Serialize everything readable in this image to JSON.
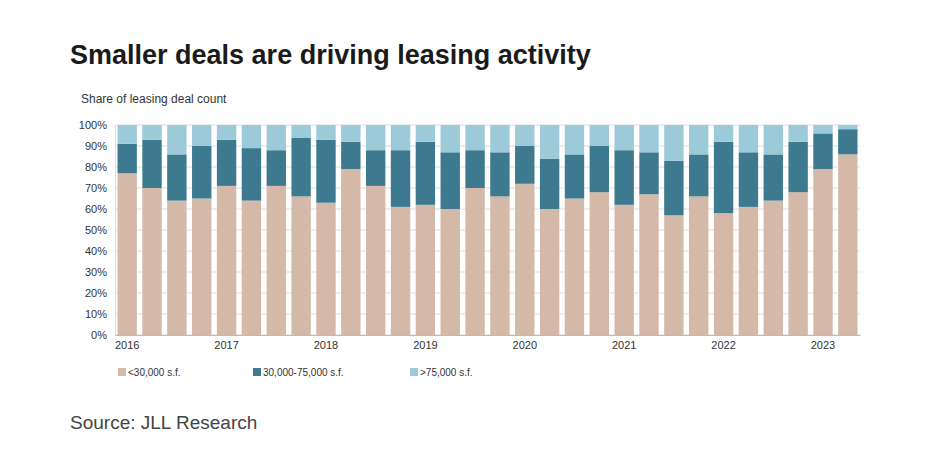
{
  "chart_data": {
    "type": "bar",
    "title": "Smaller deals are driving leasing activity",
    "subtitle": "Share of leasing deal count",
    "source": "Source: JLL Research",
    "categories": [
      "2016",
      null,
      null,
      null,
      "2017",
      null,
      null,
      null,
      "2018",
      null,
      null,
      null,
      "2019",
      null,
      null,
      null,
      "2020",
      null,
      null,
      null,
      "2021",
      null,
      null,
      null,
      "2022",
      null,
      null,
      null,
      "2023",
      null
    ],
    "series": [
      {
        "name": "<30,000 s.f.",
        "color": "#d4b9a8",
        "values": [
          77,
          70,
          64,
          65,
          71,
          64,
          71,
          66,
          63,
          79,
          71,
          61,
          62,
          60,
          70,
          66,
          72,
          60,
          65,
          68,
          62,
          67,
          57,
          66,
          58,
          61,
          64,
          68,
          79,
          86
        ]
      },
      {
        "name": "30,000-75,000 s.f.",
        "color": "#3d7a8f",
        "values": [
          14,
          23,
          22,
          25,
          22,
          25,
          17,
          28,
          30,
          13,
          17,
          27,
          30,
          27,
          18,
          21,
          18,
          24,
          21,
          22,
          26,
          20,
          26,
          20,
          34,
          26,
          22,
          24,
          17,
          12
        ]
      },
      {
        "name": ">75,000 s.f.",
        "color": "#9ccad8",
        "values": [
          9,
          7,
          14,
          10,
          7,
          11,
          12,
          6,
          7,
          8,
          12,
          12,
          8,
          13,
          12,
          13,
          10,
          16,
          14,
          10,
          12,
          13,
          17,
          14,
          8,
          13,
          14,
          8,
          4,
          2
        ]
      }
    ],
    "ylim": [
      0,
      100
    ],
    "yticks": [
      {
        "value": 0,
        "label": "0%"
      },
      {
        "value": 10,
        "label": "10%"
      },
      {
        "value": 20,
        "label": "20%"
      },
      {
        "value": 30,
        "label": "30%"
      },
      {
        "value": 40,
        "label": "40%"
      },
      {
        "value": 50,
        "label": "50%"
      },
      {
        "value": 60,
        "label": "60%"
      },
      {
        "value": 70,
        "label": "70%"
      },
      {
        "value": 80,
        "label": "80%"
      },
      {
        "value": 90,
        "label": "90%"
      },
      {
        "value": 100,
        "label": "100%"
      }
    ],
    "stacked": true,
    "grid": true,
    "legend": "bottom"
  }
}
